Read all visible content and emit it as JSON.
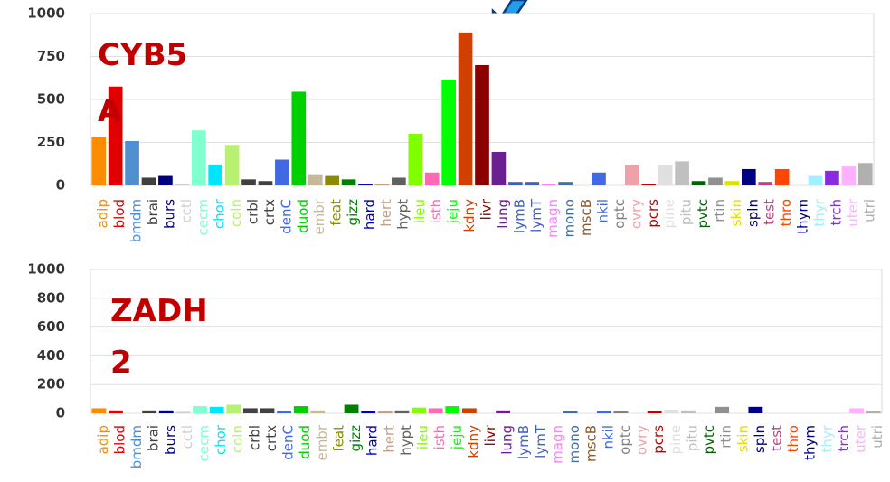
{
  "chart_data": [
    {
      "type": "bar",
      "title": "CYB5A",
      "categories": [
        "adip",
        "blod",
        "bmdm",
        "brai",
        "burs",
        "cctl",
        "cecm",
        "chor",
        "coln",
        "crbl",
        "crtx",
        "denC",
        "duod",
        "embr",
        "feat",
        "gizz",
        "hard",
        "hert",
        "hypt",
        "ileu",
        "isth",
        "jeju",
        "kdny",
        "livr",
        "lung",
        "lymB",
        "lymT",
        "magn",
        "mono",
        "mscB",
        "nkil",
        "optc",
        "ovry",
        "pcrs",
        "pine",
        "pitu",
        "pvtc",
        "rtin",
        "skin",
        "spln",
        "test",
        "thro",
        "thym",
        "thyr",
        "trch",
        "uter",
        "utri"
      ],
      "values": [
        280,
        575,
        258,
        45,
        55,
        10,
        320,
        120,
        235,
        35,
        25,
        150,
        545,
        65,
        55,
        35,
        10,
        10,
        45,
        300,
        75,
        615,
        890,
        700,
        195,
        20,
        20,
        10,
        20,
        0,
        75,
        0,
        120,
        10,
        120,
        140,
        25,
        45,
        25,
        95,
        20,
        95,
        0,
        55,
        85,
        110,
        130
      ],
      "colors": [
        "#ff8c00",
        "#e00000",
        "#4f8fcf",
        "#404040",
        "#000080",
        "#d0d0d0",
        "#80ffd0",
        "#00e5ff",
        "#b8f070",
        "#404040",
        "#404040",
        "#4169e1",
        "#00d000",
        "#c8b89a",
        "#8b8b00",
        "#008000",
        "#0000c0",
        "#c8a080",
        "#606060",
        "#80ff00",
        "#ff69b4",
        "#00ff00",
        "#d04000",
        "#8b0000",
        "#6a2090",
        "#4060c0",
        "#4060c0",
        "#ff80ff",
        "#4070a0",
        "#8b5a2b",
        "#4169e1",
        "#808080",
        "#f0a0a8",
        "#c00000",
        "#e0e0e0",
        "#c0c0c0",
        "#006400",
        "#909090",
        "#e0e000",
        "#000080",
        "#c04080",
        "#ff4500",
        "#000080",
        "#a0f0ff",
        "#8a2be2",
        "#ffb0ff",
        "#b0b0b0"
      ],
      "ylim": [
        0,
        1000
      ],
      "yticks": [
        0,
        250,
        500,
        750,
        1000
      ],
      "grid": true
    },
    {
      "type": "bar",
      "title": "ZADH2",
      "categories": [
        "adip",
        "blod",
        "bmdm",
        "brai",
        "burs",
        "cctl",
        "cecm",
        "chor",
        "coln",
        "crbl",
        "crtx",
        "denC",
        "duod",
        "embr",
        "feat",
        "gizz",
        "hard",
        "hert",
        "hypt",
        "ileu",
        "isth",
        "jeju",
        "kdny",
        "livr",
        "lung",
        "lymB",
        "lymT",
        "magn",
        "mono",
        "mscB",
        "nkil",
        "optc",
        "ovry",
        "pcrs",
        "pine",
        "pitu",
        "pvtc",
        "rtin",
        "skin",
        "spln",
        "test",
        "thro",
        "thym",
        "thyr",
        "trch",
        "uter",
        "utri"
      ],
      "values": [
        35,
        20,
        0,
        20,
        20,
        10,
        50,
        45,
        60,
        35,
        35,
        15,
        50,
        20,
        0,
        60,
        15,
        15,
        20,
        40,
        35,
        50,
        35,
        0,
        20,
        0,
        0,
        0,
        15,
        0,
        15,
        15,
        0,
        15,
        25,
        20,
        0,
        45,
        0,
        45,
        0,
        0,
        0,
        0,
        0,
        35,
        15
      ],
      "colors": [
        "#ff8c00",
        "#e00000",
        "#4f8fcf",
        "#404040",
        "#000080",
        "#d0d0d0",
        "#80ffd0",
        "#00e5ff",
        "#b8f070",
        "#404040",
        "#404040",
        "#4169e1",
        "#00d000",
        "#c8b89a",
        "#8b8b00",
        "#008000",
        "#0000c0",
        "#c8a080",
        "#606060",
        "#80ff00",
        "#ff69b4",
        "#00ff00",
        "#d04000",
        "#8b0000",
        "#6a2090",
        "#4060c0",
        "#4060c0",
        "#ff80ff",
        "#4070a0",
        "#8b5a2b",
        "#4169e1",
        "#808080",
        "#f0a0a8",
        "#c00000",
        "#e0e0e0",
        "#c0c0c0",
        "#006400",
        "#909090",
        "#e0e000",
        "#000080",
        "#c04080",
        "#ff4500",
        "#000080",
        "#a0f0ff",
        "#8a2be2",
        "#ffb0ff",
        "#b0b0b0"
      ],
      "ylim": [
        0,
        1000
      ],
      "yticks": [
        0,
        200,
        400,
        600,
        800,
        1000
      ],
      "grid": true
    }
  ]
}
